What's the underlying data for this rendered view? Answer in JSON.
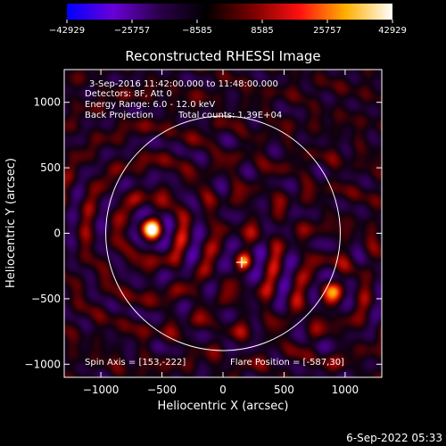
{
  "chart_data": {
    "type": "heatmap",
    "title": "Reconstructed RHESSI Image",
    "xlabel": "Heliocentric X (arcsec)",
    "ylabel": "Heliocentric Y (arcsec)",
    "xlim": [
      -1300,
      1300
    ],
    "ylim": [
      -1100,
      1250
    ],
    "xticks": [
      -1000,
      -500,
      0,
      500,
      1000
    ],
    "yticks": [
      -1000,
      -500,
      0,
      500,
      1000
    ],
    "xtick_labels": [
      "−1000",
      "−500",
      "0",
      "500",
      "1000"
    ],
    "ytick_labels": [
      "−1000",
      "−500",
      "0",
      "500",
      "1000"
    ],
    "colorbar": {
      "min": -42929,
      "max": 42929,
      "ticks": [
        -42929,
        -25757,
        -8585,
        8585,
        25757,
        42929
      ],
      "tick_labels": [
        "−42929",
        "−25757",
        "−8585",
        "8585",
        "25757",
        "42929"
      ],
      "colors": [
        "#0000ff",
        "#6a00d8",
        "#2a0048",
        "#000000",
        "#7a0000",
        "#ff1010",
        "#ffb000",
        "#ffffff"
      ]
    },
    "sources": [
      {
        "x": -587,
        "y": 30
      },
      {
        "x": 880,
        "y": -460
      },
      {
        "x": 170,
        "y": -220
      }
    ],
    "solar_disk": {
      "center": [
        0,
        0
      ],
      "radius": 960
    },
    "cross": {
      "x": 153,
      "y": -222
    }
  },
  "annotations": {
    "line1": "3-Sep-2016 11:42:00.000 to 11:48:00.000",
    "line2": "Detectors: 8F, Att 0",
    "line3": "Energy Range: 6.0 - 12.0 keV",
    "line4": "Back Projection",
    "total_counts": "Total counts: 1.39E+04",
    "spin_axis": "Spin Axis = [153,-222]",
    "flare_position": "Flare Position = [-587,30]"
  },
  "timestamp": "6-Sep-2022 05:33"
}
